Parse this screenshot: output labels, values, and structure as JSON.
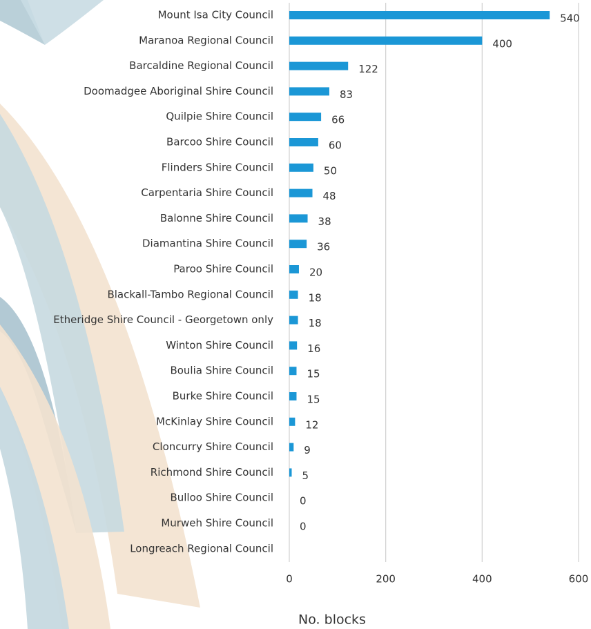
{
  "chart_data": {
    "type": "bar",
    "orientation": "horizontal",
    "categories": [
      "Mount Isa City Council",
      "Maranoa Regional Council",
      "Barcaldine Regional Council",
      "Doomadgee Aboriginal Shire Council",
      "Quilpie Shire Council",
      "Barcoo Shire Council",
      "Flinders Shire Council",
      "Carpentaria Shire Council",
      "Balonne Shire Council",
      "Diamantina Shire Council",
      "Paroo Shire Council",
      "Blackall-Tambo Regional Council",
      "Etheridge Shire Council - Georgetown only",
      "Winton Shire Council",
      "Boulia Shire Council",
      "Burke Shire Council",
      "McKinlay Shire Council",
      "Cloncurry Shire Council",
      "Richmond Shire Council",
      "Bulloo Shire Council",
      "Murweh Shire Council",
      "Longreach Regional Council"
    ],
    "values": [
      540,
      400,
      122,
      83,
      66,
      60,
      50,
      48,
      38,
      36,
      20,
      18,
      18,
      16,
      15,
      15,
      12,
      9,
      5,
      0,
      0,
      null
    ],
    "color": "#1b97d6",
    "xlabel": "No. blocks",
    "xlim": [
      0,
      600
    ],
    "xticks": [
      0,
      200,
      400,
      600
    ],
    "grid": true
  }
}
